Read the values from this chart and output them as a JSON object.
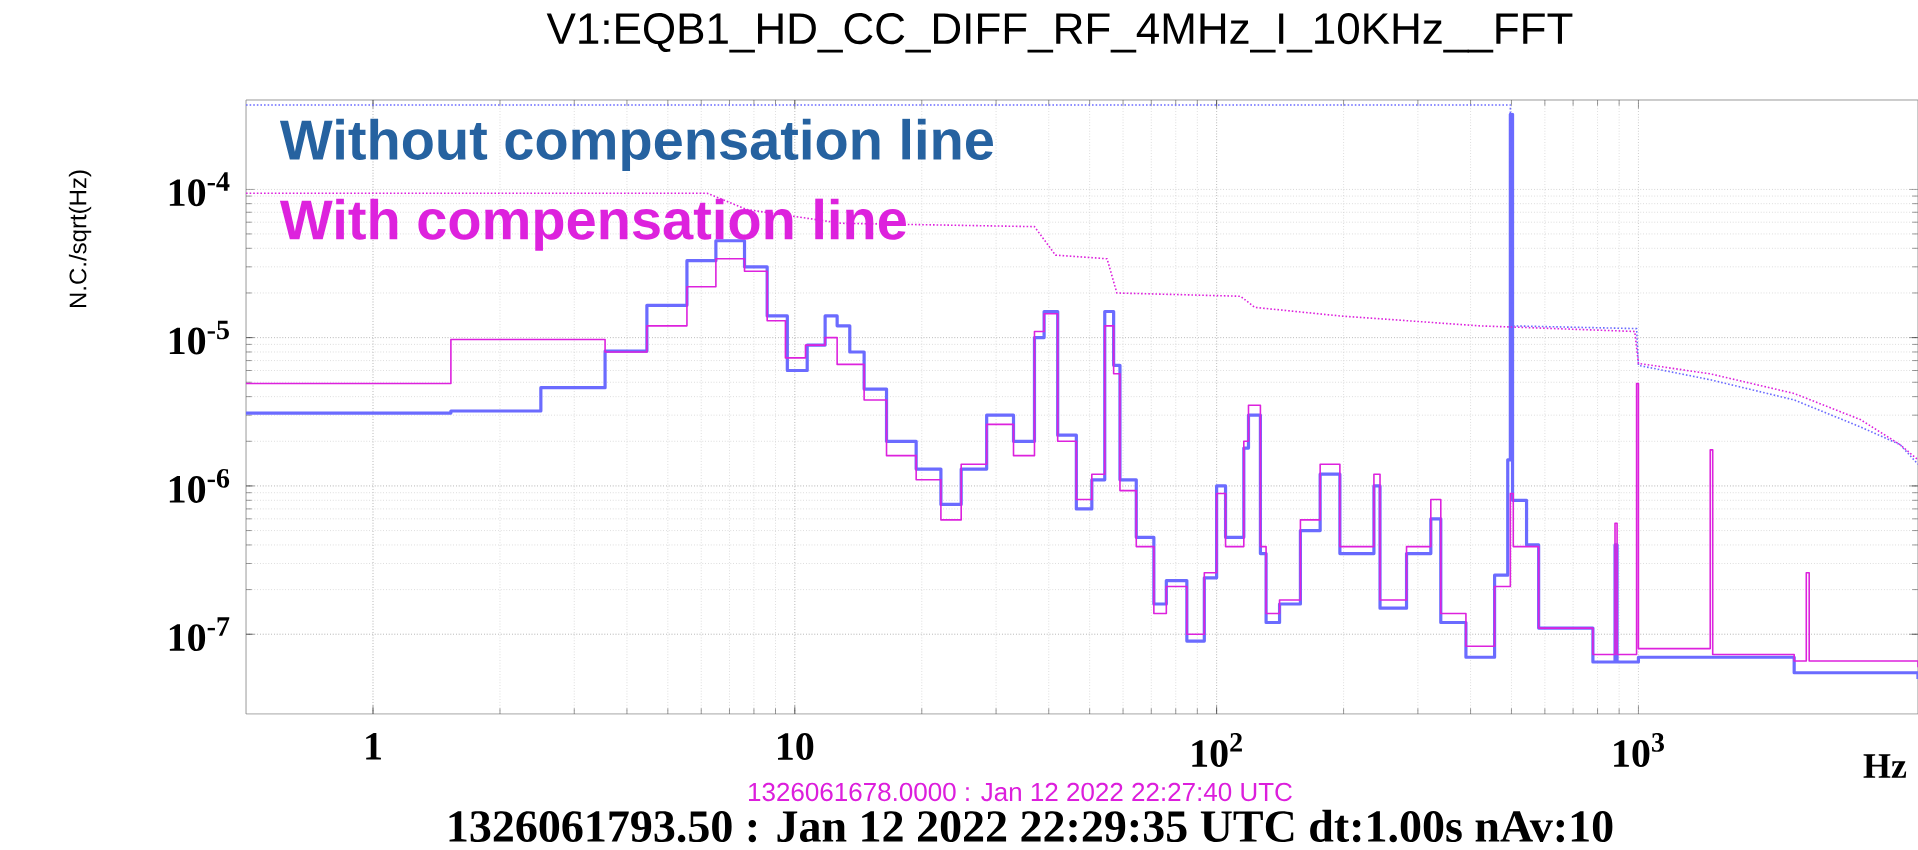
{
  "chart_data": {
    "type": "line",
    "title": "V1:EQB1_HD_CC_DIFF_RF_4MHz_I_10KHz__FFT",
    "xlabel": "Hz",
    "ylabel": "N.C./sqrt(Hz)",
    "log": "xy",
    "grid": true,
    "legend": "top left",
    "xlim": [
      0.5,
      4600
    ],
    "ylim": [
      2.9e-08,
      0.0004
    ],
    "xticks": [
      1,
      10,
      {
        "value": 100,
        "label": "10$^{2}$"
      },
      {
        "value": 1000,
        "label": "10$^{3}$"
      }
    ],
    "yticks": [
      {
        "value": 1e-07,
        "label": "10$^{-7}$"
      },
      {
        "value": 1e-06,
        "label": "10$^{-6}$"
      },
      {
        "value": 1e-05,
        "label": "10$^{-5}$"
      },
      {
        "value": 0.0001,
        "label": "10$^{-4}$"
      }
    ],
    "annotations": [
      "1326061678.0000 : Jan 12 2022 22:27:40 UTC",
      "1326061793.50 : Jan 12 2022 22:29:35 UTC dt:1.00s nAv:10"
    ],
    "series": [
      {
        "name": "Without compensation line",
        "type": "step",
        "color": "#6b6bff",
        "x": [
          0.5,
          1.53,
          2.5,
          3.55,
          4.46,
          5.55,
          6.5,
          7.6,
          8.6,
          9.6,
          10.7,
          11.8,
          12.6,
          13.5,
          14.6,
          16.5,
          19.4,
          22.2,
          24.8,
          28.5,
          33,
          37,
          39,
          42,
          46.5,
          50.6,
          54.3,
          57,
          59,
          64.5,
          71,
          76,
          85,
          93.5,
          100,
          105,
          116,
          119,
          127,
          131,
          141,
          158,
          176,
          196,
          236,
          244,
          282,
          322,
          340,
          390,
          456,
          490,
          497,
          503,
          543,
          580,
          780,
          880,
          890,
          1000,
          2340,
          4600
        ],
        "values": [
          3.1e-06,
          3.2e-06,
          4.6e-06,
          8.1e-06,
          1.65e-05,
          3.3e-05,
          4.5e-05,
          3e-05,
          1.4e-05,
          6e-06,
          8.9e-06,
          1.4e-05,
          1.2e-05,
          8e-06,
          4.5e-06,
          2e-06,
          1.3e-06,
          7.5e-07,
          1.3e-06,
          3e-06,
          2e-06,
          1e-05,
          1.5e-05,
          2.2e-06,
          7e-07,
          1.1e-06,
          1.5e-05,
          6.5e-06,
          1.1e-06,
          4.5e-07,
          1.6e-07,
          2.3e-07,
          9e-08,
          2.4e-07,
          1e-06,
          4.5e-07,
          1.8e-06,
          3e-06,
          3.5e-07,
          1.2e-07,
          1.6e-07,
          5e-07,
          1.2e-06,
          3.5e-07,
          1e-06,
          1.5e-07,
          3.5e-07,
          6e-07,
          1.2e-07,
          7e-08,
          2.5e-07,
          1.5e-06,
          0.00032,
          8e-07,
          4e-07,
          1.1e-07,
          6.5e-08,
          4e-07,
          6.5e-08,
          7e-08,
          5.5e-08,
          5e-08
        ]
      },
      {
        "name": "With compensation line",
        "type": "step",
        "color": "#dd22dd",
        "x": [
          0.5,
          1.53,
          3.55,
          4.46,
          5.55,
          6.5,
          7.6,
          8.6,
          9.5,
          10.6,
          11.8,
          12.6,
          14.6,
          16.5,
          19.4,
          22.2,
          24.8,
          28.5,
          33,
          37,
          39,
          42,
          46.5,
          50.6,
          54.3,
          57,
          59,
          64.5,
          71,
          76,
          85,
          93.5,
          100,
          105,
          116,
          119,
          127,
          131,
          141,
          158,
          176,
          196,
          236,
          244,
          282,
          322,
          340,
          390,
          456,
          497,
          505,
          543,
          580,
          780,
          880,
          890,
          990,
          1000,
          1480,
          1500,
          2340,
          2500,
          2540,
          4600
        ],
        "values": [
          4.9e-06,
          9.7e-06,
          8e-06,
          1.2e-05,
          2.2e-05,
          3.4e-05,
          2.8e-05,
          1.3e-05,
          7.3e-06,
          8.9e-06,
          1e-05,
          6.6e-06,
          3.8e-06,
          1.6e-06,
          1.1e-06,
          5.9e-07,
          1.4e-06,
          2.6e-06,
          1.6e-06,
          1.1e-05,
          1.45e-05,
          2e-06,
          8.1e-07,
          1.2e-06,
          1.2e-05,
          5.7e-06,
          9.3e-07,
          3.9e-07,
          1.38e-07,
          2.1e-07,
          1e-07,
          2.6e-07,
          8.9e-07,
          3.9e-07,
          2e-06,
          3.5e-06,
          3.9e-07,
          1.38e-07,
          1.7e-07,
          5.9e-07,
          1.4e-06,
          3.9e-07,
          1.2e-06,
          1.7e-07,
          3.9e-07,
          8.1e-07,
          1.38e-07,
          8.3e-08,
          2.1e-07,
          8.9e-07,
          3.9e-07,
          3.9e-07,
          1.1e-07,
          7.3e-08,
          5.6e-07,
          7.3e-08,
          4.9e-06,
          8e-08,
          1.75e-06,
          7.3e-08,
          6.6e-08,
          2.6e-07,
          6.6e-08,
          6e-08
        ]
      },
      {
        "line_style": "dotted",
        "color": "#6b6bff",
        "x": [
          0.5,
          497,
          500,
          990,
          1000,
          1480,
          2340,
          3360,
          4170,
          4600
        ],
        "values": [
          0.00037,
          0.00037,
          1.2e-05,
          1.15e-05,
          6.5e-06,
          5.2e-06,
          3.8e-06,
          2.5e-06,
          1.9e-06,
          1.4e-06
        ]
      },
      {
        "line_style": "dotted",
        "color": "#dd22dd",
        "x": [
          0.5,
          6.2,
          7.7,
          12.9,
          37,
          41.5,
          55,
          58,
          114,
          123,
          196,
          420,
          980,
          1000,
          1480,
          2340,
          3360,
          4170,
          4600
        ],
        "values": [
          9.4e-05,
          9.4e-05,
          7.3e-05,
          5.9e-05,
          5.6e-05,
          3.6e-05,
          3.4e-05,
          2e-05,
          1.9e-05,
          1.6e-05,
          1.4e-05,
          1.2e-05,
          1.1e-05,
          6.7e-06,
          5.7e-06,
          4.2e-06,
          2.8e-06,
          1.9e-06,
          1.5e-06
        ]
      }
    ]
  }
}
